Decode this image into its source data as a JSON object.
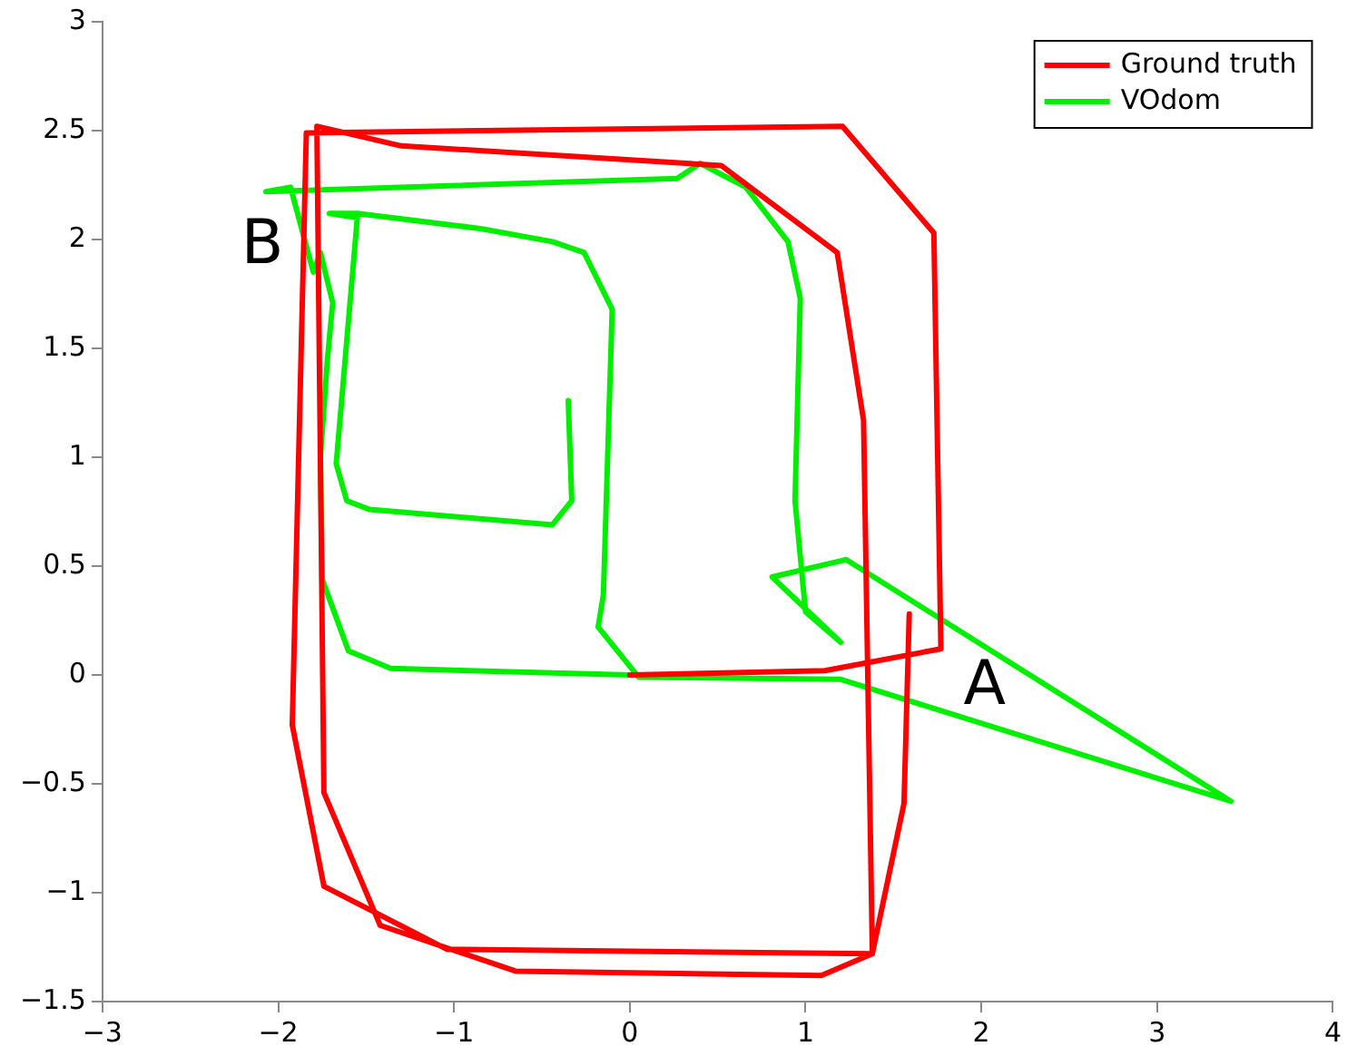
{
  "chart_data": {
    "type": "line",
    "xlim": [
      -3,
      4
    ],
    "ylim": [
      -1.5,
      3
    ],
    "xticks": [
      {
        "value": -3,
        "label": "−3"
      },
      {
        "value": -2,
        "label": "−2"
      },
      {
        "value": -1,
        "label": "−1"
      },
      0,
      1,
      2,
      3,
      4
    ],
    "yticks": [
      {
        "value": -1.5,
        "label": "−1.5"
      },
      {
        "value": -1,
        "label": "−1"
      },
      {
        "value": -0.5,
        "label": "−0.5"
      },
      0,
      0.5,
      1,
      1.5,
      2,
      2.5,
      3
    ],
    "grid": false,
    "legend": "top right",
    "marker": "none",
    "line_style": "solid",
    "annotations": [
      "A",
      "B"
    ],
    "series": [
      {
        "name": "Ground truth",
        "color": "#ff0000",
        "x": [
          1.59,
          1.56,
          1.38,
          1.09,
          -0.65,
          -1.42,
          -1.74,
          -1.78,
          -1.3,
          0.52,
          1.18,
          1.33,
          1.38,
          -1.04,
          -1.74,
          -1.92,
          -1.84,
          1.21,
          1.73,
          1.77,
          1.11,
          0.0
        ],
        "values": [
          0.28,
          -0.59,
          -1.28,
          -1.38,
          -1.36,
          -1.15,
          -0.54,
          2.52,
          2.43,
          2.34,
          1.94,
          1.17,
          -1.28,
          -1.26,
          -0.97,
          -0.23,
          2.49,
          2.52,
          2.03,
          0.12,
          0.02,
          0.0
        ]
      },
      {
        "name": "VOdom",
        "color": "#00ee00",
        "x": [
          -0.35,
          -0.33,
          -0.44,
          -1.48,
          -1.61,
          -1.67,
          -1.55,
          -1.71,
          -1.55,
          -0.85,
          -0.44,
          -0.26,
          -0.1,
          -0.15,
          -0.18,
          0.05,
          1.2,
          3.42,
          1.23,
          0.81,
          1.2,
          1.0,
          0.94,
          0.97,
          0.9,
          0.66,
          0.4,
          0.27,
          -2.07,
          -1.93,
          -1.8,
          -1.76,
          -1.69,
          -1.72,
          -1.76,
          -1.75,
          -1.6,
          -1.36,
          0.0
        ],
        "values": [
          1.26,
          0.8,
          0.69,
          0.76,
          0.8,
          0.97,
          2.1,
          2.12,
          2.12,
          2.05,
          1.99,
          1.94,
          1.68,
          0.37,
          0.22,
          -0.01,
          -0.02,
          -0.58,
          0.53,
          0.45,
          0.15,
          0.29,
          0.8,
          1.73,
          1.99,
          2.24,
          2.35,
          2.28,
          2.22,
          2.24,
          1.85,
          1.94,
          1.71,
          1.45,
          1.0,
          0.44,
          0.11,
          0.03,
          0.0
        ]
      }
    ]
  }
}
